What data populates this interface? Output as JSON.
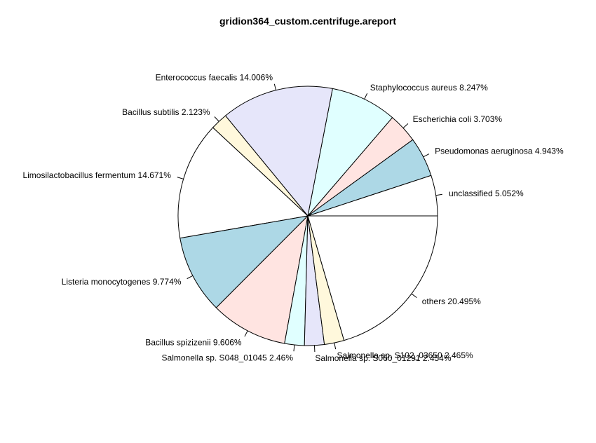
{
  "chart_data": {
    "type": "pie",
    "title": "gridion364_custom.centrifuge.areport",
    "start_angle_deg": 0,
    "direction": "counterclockwise",
    "slices": [
      {
        "label": "unclassified 5.052%",
        "value": 5.052,
        "color": "#ffffff"
      },
      {
        "label": "Pseudomonas aeruginosa 4.943%",
        "value": 4.943,
        "color": "#add8e6"
      },
      {
        "label": "Escherichia coli 3.703%",
        "value": 3.703,
        "color": "#ffe4e1"
      },
      {
        "label": "Staphylococcus aureus 8.247%",
        "value": 8.247,
        "color": "#e0ffff"
      },
      {
        "label": "Enterococcus faecalis 14.006%",
        "value": 14.006,
        "color": "#e6e6fa"
      },
      {
        "label": "Bacillus subtilis 2.123%",
        "value": 2.123,
        "color": "#fff8dc"
      },
      {
        "label": "Limosilactobacillus fermentum 14.671%",
        "value": 14.671,
        "color": "#ffffff"
      },
      {
        "label": "Listeria monocytogenes 9.774%",
        "value": 9.774,
        "color": "#add8e6"
      },
      {
        "label": "Bacillus spizizenii 9.606%",
        "value": 9.606,
        "color": "#ffe4e1"
      },
      {
        "label": "Salmonella sp. S048_01045 2.46%",
        "value": 2.46,
        "color": "#e0ffff"
      },
      {
        "label": "Salmonella sp. S060_01291 2.454%",
        "value": 2.454,
        "color": "#e6e6fa"
      },
      {
        "label": "Salmonella sp. S102_03650 2.465%",
        "value": 2.465,
        "color": "#fff8dc"
      },
      {
        "label": "others 20.495%",
        "value": 20.495,
        "color": "#ffffff"
      }
    ]
  }
}
